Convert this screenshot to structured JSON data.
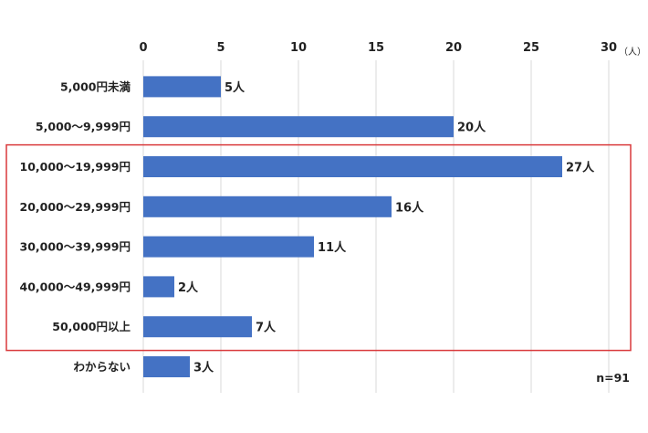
{
  "chart_data": {
    "type": "bar",
    "orientation": "horizontal",
    "title": "",
    "xlabel": "",
    "ylabel": "",
    "unit": "（人）",
    "xlim": [
      0,
      30
    ],
    "x_ticks": [
      0,
      5,
      10,
      15,
      20,
      25,
      30
    ],
    "grid": true,
    "categories": [
      "5,000円未満",
      "5,000～9,999円",
      "10,000～19,999円",
      "20,000～29,999円",
      "30,000～39,999円",
      "40,000～49,999円",
      "50,000円以上",
      "わからない"
    ],
    "values": [
      5,
      20,
      27,
      16,
      11,
      2,
      7,
      3
    ],
    "data_labels": [
      "5人",
      "20人",
      "27人",
      "16人",
      "11人",
      "2人",
      "7人",
      "3人"
    ],
    "bar_color": "#4472c4",
    "highlight_color": "#d9393b",
    "highlight_categories": [
      2,
      6
    ],
    "sample_size": "n=91"
  }
}
